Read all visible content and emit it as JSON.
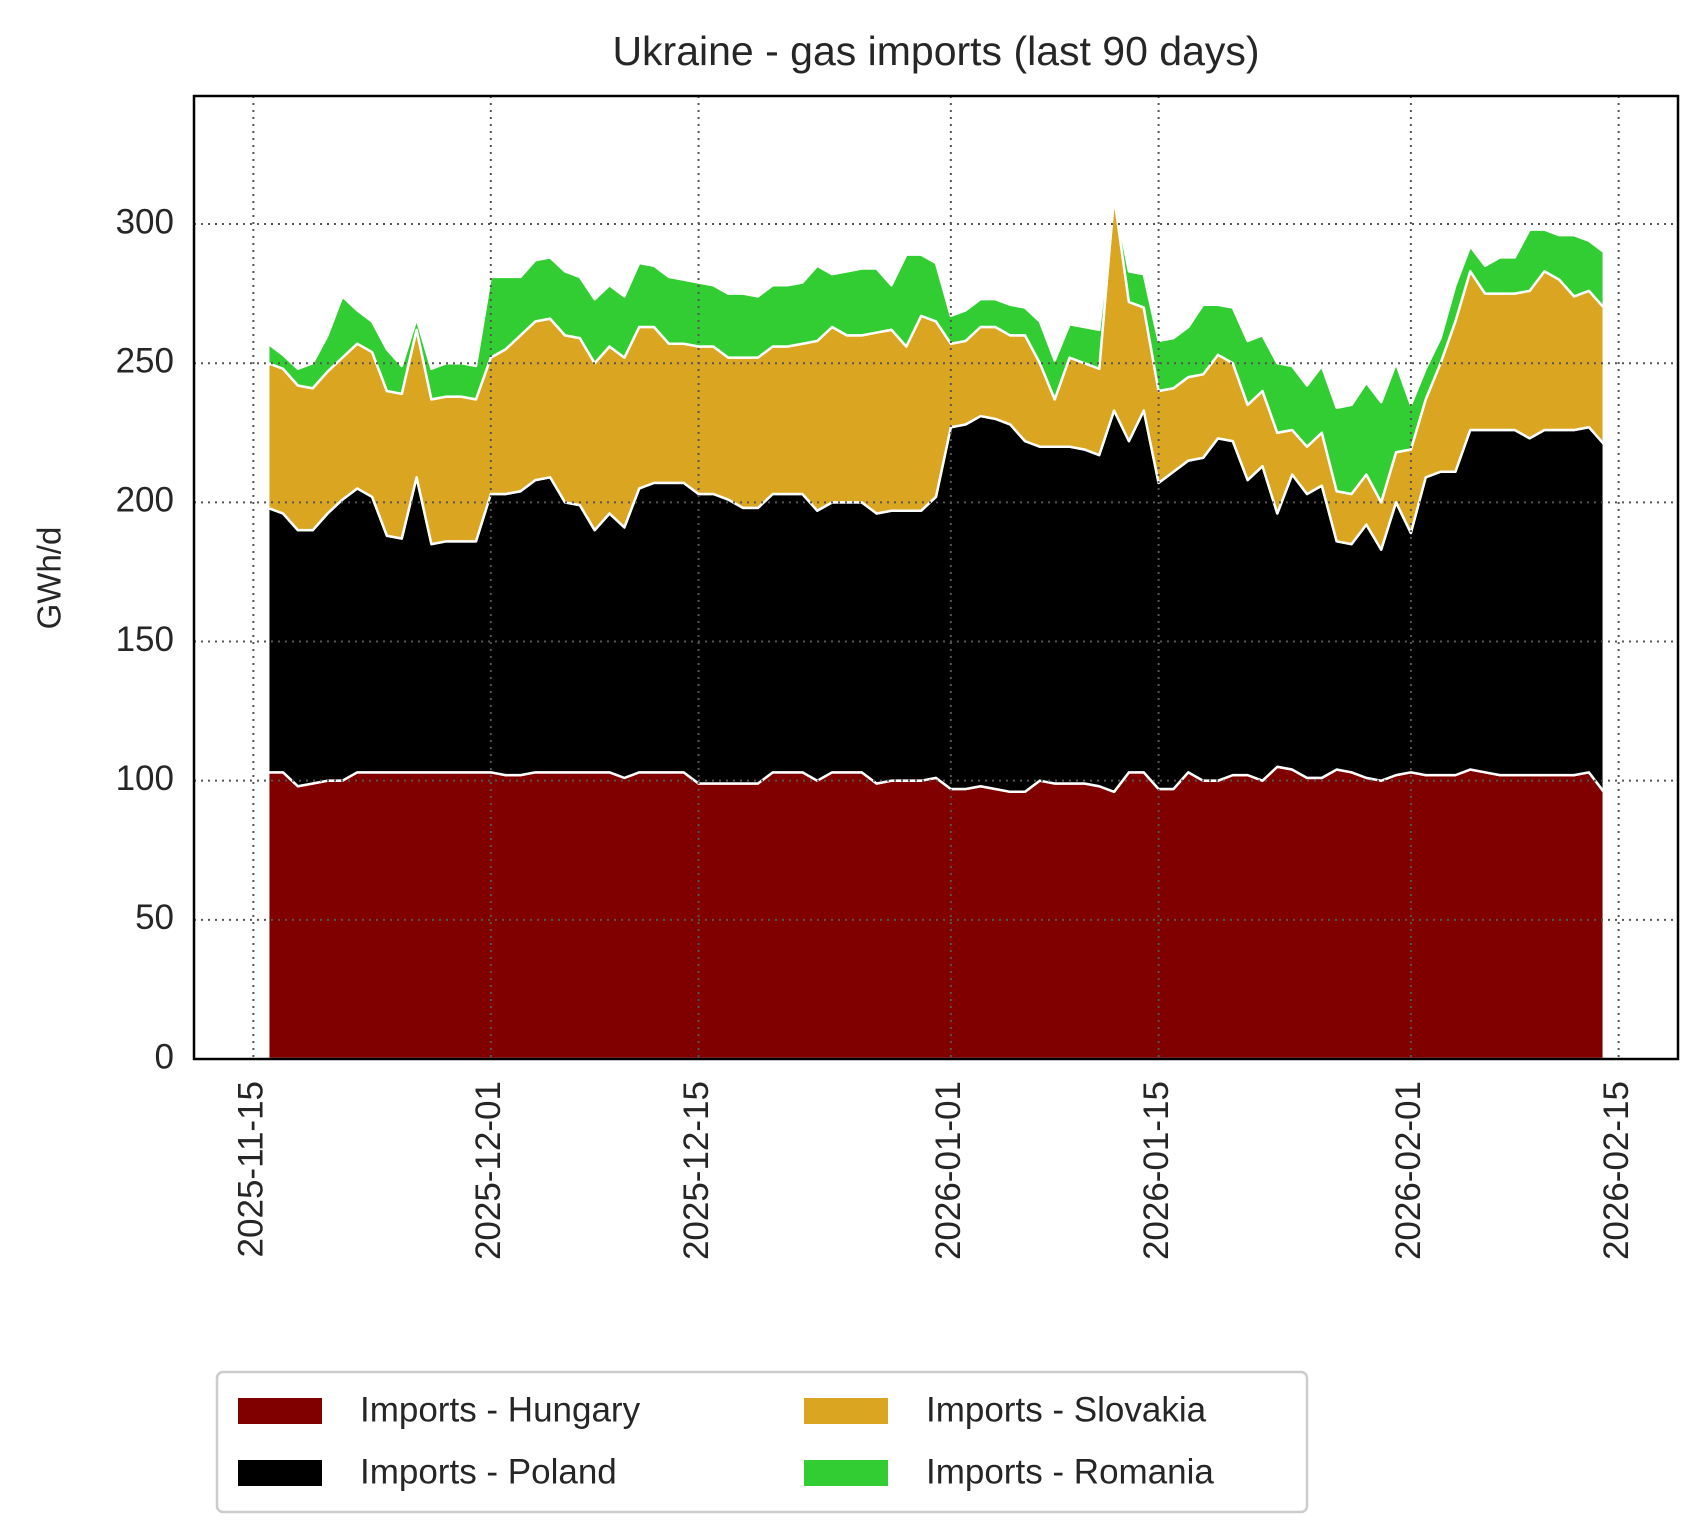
{
  "chart_data": {
    "type": "stacked_area",
    "title": "Ukraine - gas imports (last 90 days)",
    "y_label": "GWh/d",
    "x": [
      "2025-11-16",
      "2025-11-17",
      "2025-11-18",
      "2025-11-19",
      "2025-11-20",
      "2025-11-21",
      "2025-11-22",
      "2025-11-23",
      "2025-11-24",
      "2025-11-25",
      "2025-11-26",
      "2025-11-27",
      "2025-11-28",
      "2025-11-29",
      "2025-11-30",
      "2025-12-01",
      "2025-12-02",
      "2025-12-03",
      "2025-12-04",
      "2025-12-05",
      "2025-12-06",
      "2025-12-07",
      "2025-12-08",
      "2025-12-09",
      "2025-12-10",
      "2025-12-11",
      "2025-12-12",
      "2025-12-13",
      "2025-12-14",
      "2025-12-15",
      "2025-12-16",
      "2025-12-17",
      "2025-12-18",
      "2025-12-19",
      "2025-12-20",
      "2025-12-21",
      "2025-12-22",
      "2025-12-23",
      "2025-12-24",
      "2025-12-25",
      "2025-12-26",
      "2025-12-27",
      "2025-12-28",
      "2025-12-29",
      "2025-12-30",
      "2025-12-31",
      "2026-01-01",
      "2026-01-02",
      "2026-01-03",
      "2026-01-04",
      "2026-01-05",
      "2026-01-06",
      "2026-01-07",
      "2026-01-08",
      "2026-01-09",
      "2026-01-10",
      "2026-01-11",
      "2026-01-12",
      "2026-01-13",
      "2026-01-14",
      "2026-01-15",
      "2026-01-16",
      "2026-01-17",
      "2026-01-18",
      "2026-01-19",
      "2026-01-20",
      "2026-01-21",
      "2026-01-22",
      "2026-01-23",
      "2026-01-24",
      "2026-01-25",
      "2026-01-26",
      "2026-01-27",
      "2026-01-28",
      "2026-01-29",
      "2026-01-30",
      "2026-01-31",
      "2026-02-01",
      "2026-02-02",
      "2026-02-03",
      "2026-02-04",
      "2026-02-05",
      "2026-02-06",
      "2026-02-07",
      "2026-02-08",
      "2026-02-09",
      "2026-02-10",
      "2026-02-11",
      "2026-02-12",
      "2026-02-13",
      "2026-02-14"
    ],
    "series": [
      {
        "name": "Imports - Hungary",
        "color": "#800000",
        "values": [
          103,
          103,
          98,
          99,
          100,
          100,
          103,
          103,
          103,
          103,
          103,
          103,
          103,
          103,
          103,
          103,
          102,
          102,
          103,
          103,
          103,
          103,
          103,
          103,
          101,
          103,
          103,
          103,
          103,
          99,
          99,
          99,
          99,
          99,
          103,
          103,
          103,
          100,
          103,
          103,
          103,
          99,
          100,
          100,
          100,
          101,
          97,
          97,
          98,
          97,
          96,
          96,
          100,
          99,
          99,
          99,
          98,
          96,
          103,
          103,
          97,
          97,
          103,
          100,
          100,
          102,
          102,
          100,
          105,
          104,
          101,
          101,
          104,
          103,
          101,
          100,
          102,
          103,
          102,
          102,
          102,
          104,
          103,
          102,
          102,
          102,
          102,
          102,
          102,
          103,
          96
        ]
      },
      {
        "name": "Imports - Poland",
        "color": "#000000",
        "values": [
          95,
          93,
          92,
          91,
          96,
          101,
          102,
          99,
          85,
          84,
          106,
          82,
          83,
          83,
          83,
          100,
          101,
          102,
          105,
          106,
          97,
          96,
          87,
          93,
          90,
          102,
          104,
          104,
          104,
          104,
          104,
          102,
          99,
          99,
          100,
          100,
          100,
          97,
          97,
          97,
          97,
          97,
          97,
          97,
          97,
          101,
          130,
          131,
          133,
          133,
          132,
          126,
          120,
          121,
          121,
          120,
          119,
          137,
          119,
          130,
          110,
          114,
          112,
          116,
          123,
          120,
          106,
          113,
          91,
          106,
          102,
          105,
          82,
          82,
          91,
          83,
          98,
          86,
          107,
          109,
          109,
          122,
          123,
          124,
          124,
          121,
          124,
          124,
          124,
          124,
          125
        ]
      },
      {
        "name": "Imports - Slovakia",
        "color": "#daa520",
        "values": [
          52,
          52,
          52,
          51,
          51,
          51,
          52,
          52,
          52,
          52,
          53,
          52,
          52,
          52,
          51,
          49,
          52,
          56,
          57,
          57,
          60,
          60,
          60,
          60,
          61,
          58,
          56,
          50,
          50,
          53,
          53,
          51,
          54,
          54,
          53,
          53,
          54,
          61,
          63,
          60,
          60,
          65,
          65,
          59,
          70,
          63,
          30,
          30,
          32,
          33,
          32,
          38,
          30,
          17,
          32,
          31,
          31,
          77,
          50,
          37,
          33,
          30,
          30,
          30,
          30,
          28,
          27,
          27,
          29,
          16,
          17,
          19,
          18,
          18,
          18,
          17,
          18,
          30,
          28,
          39,
          54,
          57,
          49,
          49,
          49,
          53,
          57,
          54,
          48,
          49,
          49
        ]
      },
      {
        "name": "Imports - Romania",
        "color": "#32cd32",
        "values": [
          7,
          5,
          6,
          9,
          13,
          22,
          12,
          11,
          15,
          10,
          4,
          11,
          12,
          12,
          12,
          29,
          26,
          21,
          22,
          22,
          23,
          22,
          23,
          22,
          22,
          23,
          22,
          24,
          23,
          23,
          22,
          23,
          23,
          22,
          22,
          22,
          22,
          27,
          19,
          23,
          24,
          23,
          16,
          33,
          22,
          21,
          10,
          11,
          10,
          10,
          11,
          10,
          15,
          14,
          12,
          13,
          14,
          0,
          11,
          12,
          18,
          18,
          18,
          25,
          18,
          20,
          23,
          20,
          25,
          23,
          22,
          24,
          30,
          32,
          33,
          36,
          32,
          16,
          11,
          9,
          13,
          9,
          10,
          13,
          13,
          22,
          15,
          16,
          22,
          18,
          20
        ]
      }
    ],
    "xlim": [
      "2025-11-11",
      "2026-02-19"
    ],
    "xticks": [
      "2025-11-15",
      "2025-12-01",
      "2025-12-15",
      "2026-01-01",
      "2026-01-15",
      "2026-02-01",
      "2026-02-15"
    ],
    "ylim": [
      0,
      346
    ],
    "yticks": [
      0,
      50,
      100,
      150,
      200,
      250,
      300
    ],
    "grid": true,
    "legend": "below"
  }
}
